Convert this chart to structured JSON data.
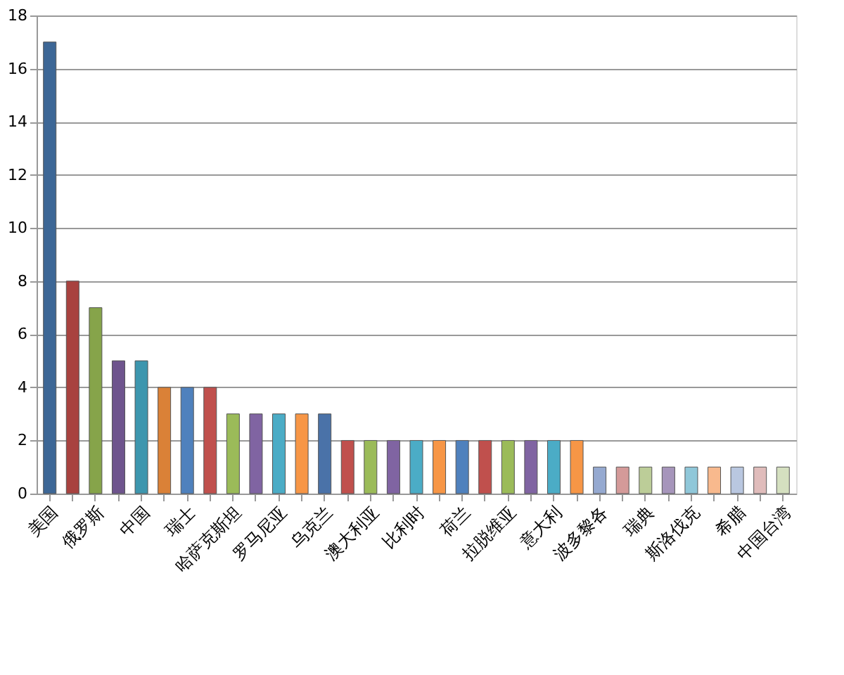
{
  "chart_data": {
    "type": "bar",
    "categories": [
      "美国",
      null,
      "俄罗斯",
      null,
      "中国",
      null,
      "瑞士",
      null,
      "哈萨克斯坦",
      null,
      "罗马尼亚",
      null,
      "乌克兰",
      null,
      "澳大利亚",
      null,
      "比利时",
      null,
      "荷兰",
      null,
      "拉脱维亚",
      null,
      "意大利",
      null,
      "波多黎各",
      null,
      "瑞典",
      null,
      "斯洛伐克",
      null,
      "希腊",
      null,
      "中国台湾"
    ],
    "values": [
      17,
      8,
      7,
      5,
      5,
      4,
      4,
      4,
      3,
      3,
      3,
      3,
      3,
      2,
      2,
      2,
      2,
      2,
      2,
      2,
      2,
      2,
      2,
      2,
      1,
      1,
      1,
      1,
      1,
      1,
      1,
      1,
      1
    ],
    "colors": [
      "#3d6796",
      "#a8423f",
      "#86a44a",
      "#6e548d",
      "#3d96ae",
      "#da8137",
      "#4f81bd",
      "#c0504d",
      "#9bbb59",
      "#8064a2",
      "#4bacc6",
      "#f79646",
      "#4a72a8",
      "#c0504d",
      "#9bbb59",
      "#8064a2",
      "#4bacc6",
      "#f79646",
      "#4f81bd",
      "#c0504d",
      "#9bbb59",
      "#8064a2",
      "#4bacc6",
      "#f79646",
      "#95a9d0",
      "#d49a99",
      "#bccd98",
      "#a695bb",
      "#8fc7d9",
      "#f8b98d",
      "#b9c7e0",
      "#e0bcbb",
      "#d5e0c0"
    ],
    "ylim": [
      0,
      18
    ],
    "yticks": [
      0,
      2,
      4,
      6,
      8,
      10,
      12,
      14,
      16,
      18
    ],
    "grid": "y"
  }
}
